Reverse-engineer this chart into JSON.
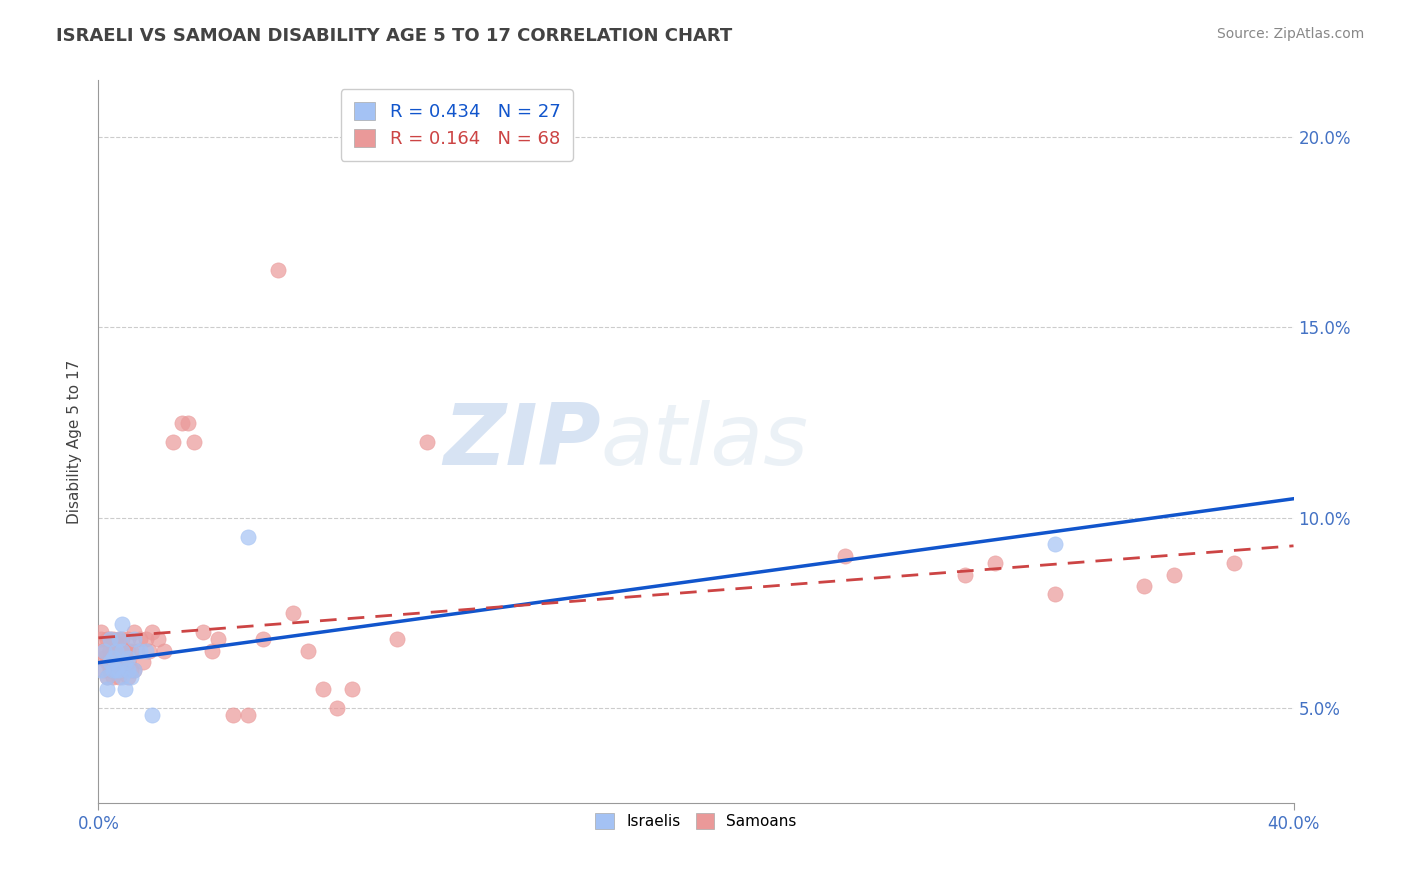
{
  "title": "ISRAELI VS SAMOAN DISABILITY AGE 5 TO 17 CORRELATION CHART",
  "source": "Source: ZipAtlas.com",
  "ylabel": "Disability Age 5 to 17",
  "xlim": [
    0.0,
    0.4
  ],
  "ylim": [
    0.025,
    0.215
  ],
  "x_ticks": [
    0.0,
    0.4
  ],
  "x_tick_labels": [
    "0.0%",
    "40.0%"
  ],
  "y_ticks": [
    0.05,
    0.1,
    0.15,
    0.2
  ],
  "y_tick_labels": [
    "5.0%",
    "10.0%",
    "15.0%",
    "20.0%"
  ],
  "israeli_R": 0.434,
  "israeli_N": 27,
  "samoan_R": 0.164,
  "samoan_N": 68,
  "israeli_color": "#a4c2f4",
  "samoan_color": "#ea9999",
  "israeli_line_color": "#1155cc",
  "samoan_line_color": "#cc4444",
  "watermark_color": "#d0dff0",
  "grid_color": "#cccccc",
  "tick_label_color": "#4472c4",
  "title_color": "#434343",
  "ylabel_color": "#434343",
  "source_color": "#888888",
  "israeli_x": [
    0.001,
    0.002,
    0.003,
    0.003,
    0.004,
    0.004,
    0.005,
    0.005,
    0.006,
    0.006,
    0.007,
    0.007,
    0.008,
    0.008,
    0.008,
    0.009,
    0.009,
    0.01,
    0.01,
    0.011,
    0.012,
    0.012,
    0.014,
    0.016,
    0.018,
    0.05,
    0.32
  ],
  "israeli_y": [
    0.06,
    0.065,
    0.058,
    0.055,
    0.062,
    0.068,
    0.06,
    0.063,
    0.06,
    0.065,
    0.06,
    0.068,
    0.058,
    0.065,
    0.072,
    0.062,
    0.055,
    0.06,
    0.063,
    0.058,
    0.06,
    0.068,
    0.065,
    0.065,
    0.048,
    0.095,
    0.093
  ],
  "samoan_x": [
    0.001,
    0.001,
    0.001,
    0.002,
    0.002,
    0.002,
    0.003,
    0.003,
    0.003,
    0.004,
    0.004,
    0.004,
    0.005,
    0.005,
    0.005,
    0.005,
    0.006,
    0.006,
    0.006,
    0.007,
    0.007,
    0.007,
    0.008,
    0.008,
    0.008,
    0.009,
    0.009,
    0.01,
    0.01,
    0.01,
    0.01,
    0.011,
    0.011,
    0.012,
    0.012,
    0.013,
    0.014,
    0.015,
    0.016,
    0.017,
    0.018,
    0.02,
    0.022,
    0.025,
    0.028,
    0.03,
    0.032,
    0.035,
    0.038,
    0.04,
    0.045,
    0.05,
    0.055,
    0.07,
    0.075,
    0.08,
    0.085,
    0.1,
    0.11,
    0.25,
    0.29,
    0.3,
    0.32,
    0.35,
    0.36,
    0.38,
    0.06,
    0.065
  ],
  "samoan_y": [
    0.065,
    0.068,
    0.07,
    0.06,
    0.063,
    0.065,
    0.058,
    0.062,
    0.068,
    0.06,
    0.065,
    0.068,
    0.058,
    0.062,
    0.065,
    0.068,
    0.06,
    0.063,
    0.067,
    0.058,
    0.062,
    0.068,
    0.06,
    0.064,
    0.068,
    0.062,
    0.065,
    0.058,
    0.062,
    0.065,
    0.068,
    0.06,
    0.065,
    0.06,
    0.07,
    0.065,
    0.068,
    0.062,
    0.068,
    0.065,
    0.07,
    0.068,
    0.065,
    0.12,
    0.125,
    0.125,
    0.12,
    0.07,
    0.065,
    0.068,
    0.048,
    0.048,
    0.068,
    0.065,
    0.055,
    0.05,
    0.055,
    0.068,
    0.12,
    0.09,
    0.085,
    0.088,
    0.08,
    0.082,
    0.085,
    0.088,
    0.165,
    0.075
  ]
}
